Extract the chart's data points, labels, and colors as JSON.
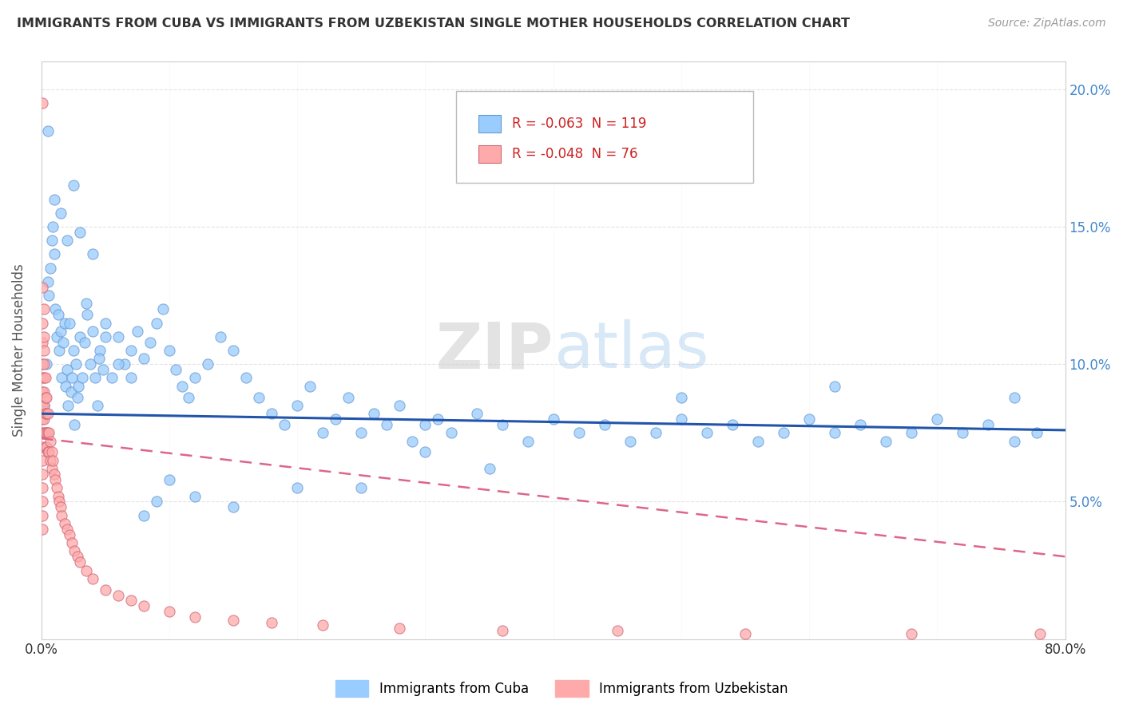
{
  "title": "IMMIGRANTS FROM CUBA VS IMMIGRANTS FROM UZBEKISTAN SINGLE MOTHER HOUSEHOLDS CORRELATION CHART",
  "source": "Source: ZipAtlas.com",
  "ylabel": "Single Mother Households",
  "xlim": [
    0,
    0.8
  ],
  "ylim": [
    0,
    0.21
  ],
  "xtick_vals": [
    0.0,
    0.1,
    0.2,
    0.3,
    0.4,
    0.5,
    0.6,
    0.7,
    0.8
  ],
  "xticklabels": [
    "0.0%",
    "",
    "",
    "",
    "",
    "",
    "",
    "",
    "80.0%"
  ],
  "ytick_vals": [
    0.05,
    0.1,
    0.15,
    0.2
  ],
  "ytick_labels": [
    "5.0%",
    "10.0%",
    "15.0%",
    "20.0%"
  ],
  "cuba_color": "#99CCFF",
  "cuba_edge_color": "#6699CC",
  "uzbekistan_color": "#FFAAAA",
  "uzbekistan_edge_color": "#CC6677",
  "cuba_line_color": "#2255AA",
  "uzbekistan_line_color": "#DD6688",
  "cuba_R": -0.063,
  "cuba_N": 119,
  "uzbekistan_R": -0.048,
  "uzbekistan_N": 76,
  "watermark": "ZIPatlas",
  "legend_cuba": "Immigrants from Cuba",
  "legend_uzbekistan": "Immigrants from Uzbekistan",
  "cuba_line_x0": 0.0,
  "cuba_line_y0": 0.082,
  "cuba_line_x1": 0.8,
  "cuba_line_y1": 0.076,
  "uzb_line_x0": 0.0,
  "uzb_line_y0": 0.073,
  "uzb_line_x1": 0.8,
  "uzb_line_y1": 0.03,
  "cuba_x": [
    0.002,
    0.004,
    0.005,
    0.006,
    0.007,
    0.008,
    0.009,
    0.01,
    0.011,
    0.012,
    0.013,
    0.014,
    0.015,
    0.016,
    0.017,
    0.018,
    0.019,
    0.02,
    0.021,
    0.022,
    0.023,
    0.024,
    0.025,
    0.026,
    0.027,
    0.028,
    0.029,
    0.03,
    0.032,
    0.034,
    0.036,
    0.038,
    0.04,
    0.042,
    0.044,
    0.046,
    0.048,
    0.05,
    0.055,
    0.06,
    0.065,
    0.07,
    0.075,
    0.08,
    0.085,
    0.09,
    0.095,
    0.1,
    0.105,
    0.11,
    0.115,
    0.12,
    0.13,
    0.14,
    0.15,
    0.16,
    0.17,
    0.18,
    0.19,
    0.2,
    0.21,
    0.22,
    0.23,
    0.24,
    0.25,
    0.26,
    0.27,
    0.28,
    0.29,
    0.3,
    0.31,
    0.32,
    0.34,
    0.36,
    0.38,
    0.4,
    0.42,
    0.44,
    0.46,
    0.48,
    0.5,
    0.52,
    0.54,
    0.56,
    0.58,
    0.6,
    0.62,
    0.64,
    0.66,
    0.68,
    0.7,
    0.72,
    0.74,
    0.76,
    0.778,
    0.005,
    0.01,
    0.015,
    0.02,
    0.025,
    0.03,
    0.035,
    0.04,
    0.045,
    0.05,
    0.06,
    0.07,
    0.08,
    0.09,
    0.1,
    0.12,
    0.15,
    0.2,
    0.25,
    0.3,
    0.35,
    0.5,
    0.62,
    0.76
  ],
  "cuba_y": [
    0.085,
    0.1,
    0.13,
    0.125,
    0.135,
    0.145,
    0.15,
    0.14,
    0.12,
    0.11,
    0.118,
    0.105,
    0.112,
    0.095,
    0.108,
    0.115,
    0.092,
    0.098,
    0.085,
    0.115,
    0.09,
    0.095,
    0.105,
    0.078,
    0.1,
    0.088,
    0.092,
    0.11,
    0.095,
    0.108,
    0.118,
    0.1,
    0.112,
    0.095,
    0.085,
    0.105,
    0.098,
    0.115,
    0.095,
    0.11,
    0.1,
    0.095,
    0.112,
    0.102,
    0.108,
    0.115,
    0.12,
    0.105,
    0.098,
    0.092,
    0.088,
    0.095,
    0.1,
    0.11,
    0.105,
    0.095,
    0.088,
    0.082,
    0.078,
    0.085,
    0.092,
    0.075,
    0.08,
    0.088,
    0.075,
    0.082,
    0.078,
    0.085,
    0.072,
    0.078,
    0.08,
    0.075,
    0.082,
    0.078,
    0.072,
    0.08,
    0.075,
    0.078,
    0.072,
    0.075,
    0.08,
    0.075,
    0.078,
    0.072,
    0.075,
    0.08,
    0.075,
    0.078,
    0.072,
    0.075,
    0.08,
    0.075,
    0.078,
    0.072,
    0.075,
    0.185,
    0.16,
    0.155,
    0.145,
    0.165,
    0.148,
    0.122,
    0.14,
    0.102,
    0.11,
    0.1,
    0.105,
    0.045,
    0.05,
    0.058,
    0.052,
    0.048,
    0.055,
    0.055,
    0.068,
    0.062,
    0.088,
    0.092,
    0.088
  ],
  "uzb_x": [
    0.001,
    0.001,
    0.001,
    0.001,
    0.001,
    0.001,
    0.001,
    0.001,
    0.001,
    0.001,
    0.001,
    0.001,
    0.001,
    0.001,
    0.001,
    0.002,
    0.002,
    0.002,
    0.002,
    0.002,
    0.002,
    0.002,
    0.002,
    0.003,
    0.003,
    0.003,
    0.003,
    0.003,
    0.004,
    0.004,
    0.004,
    0.004,
    0.005,
    0.005,
    0.005,
    0.006,
    0.006,
    0.007,
    0.007,
    0.008,
    0.008,
    0.009,
    0.01,
    0.011,
    0.012,
    0.013,
    0.014,
    0.015,
    0.016,
    0.018,
    0.02,
    0.022,
    0.024,
    0.026,
    0.028,
    0.03,
    0.035,
    0.04,
    0.05,
    0.06,
    0.07,
    0.08,
    0.1,
    0.12,
    0.15,
    0.18,
    0.22,
    0.28,
    0.36,
    0.45,
    0.55,
    0.68,
    0.78,
    0.001,
    0.001,
    0.002
  ],
  "uzb_y": [
    0.115,
    0.108,
    0.1,
    0.095,
    0.09,
    0.085,
    0.08,
    0.075,
    0.07,
    0.065,
    0.06,
    0.055,
    0.05,
    0.045,
    0.04,
    0.11,
    0.105,
    0.1,
    0.095,
    0.09,
    0.085,
    0.08,
    0.075,
    0.095,
    0.088,
    0.082,
    0.075,
    0.07,
    0.088,
    0.082,
    0.075,
    0.07,
    0.082,
    0.075,
    0.068,
    0.075,
    0.068,
    0.072,
    0.065,
    0.068,
    0.062,
    0.065,
    0.06,
    0.058,
    0.055,
    0.052,
    0.05,
    0.048,
    0.045,
    0.042,
    0.04,
    0.038,
    0.035,
    0.032,
    0.03,
    0.028,
    0.025,
    0.022,
    0.018,
    0.016,
    0.014,
    0.012,
    0.01,
    0.008,
    0.007,
    0.006,
    0.005,
    0.004,
    0.003,
    0.003,
    0.002,
    0.002,
    0.002,
    0.195,
    0.128,
    0.12
  ]
}
